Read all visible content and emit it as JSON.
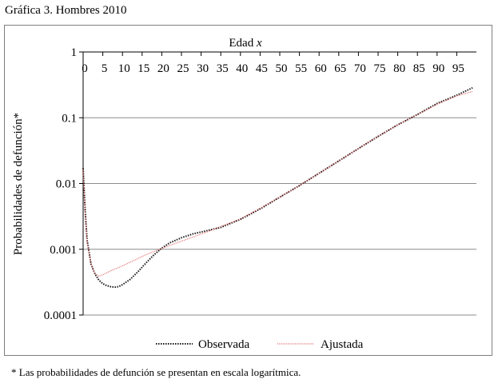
{
  "figure_title": "Gráfica 3. Hombres 2010",
  "footnote": "* Las probabilidades de defunción se presentan en escala logarítmica.",
  "chart_data": {
    "type": "line",
    "xlabel": "Edad",
    "xlabel_var": "x",
    "ylabel": "Probabilidades de defunción*",
    "x_axis_position": "top",
    "xlim": [
      0,
      100
    ],
    "x_ticks": [
      0,
      5,
      10,
      15,
      20,
      25,
      30,
      35,
      40,
      45,
      50,
      55,
      60,
      65,
      70,
      75,
      80,
      85,
      90,
      95
    ],
    "y_scale": "log",
    "ylim": [
      0.0001,
      1
    ],
    "y_ticks": [
      1,
      0.1,
      0.01,
      0.001,
      0.0001
    ],
    "y_tick_labels": [
      "1",
      "0.1",
      "0.01",
      "0.001",
      "0.0001"
    ],
    "grid": "horizontal",
    "legend_position": "bottom",
    "series": [
      {
        "name": "Observada",
        "color": "#1a1a1a",
        "style": "dotted",
        "points": [
          [
            0,
            0.017
          ],
          [
            0.5,
            0.004
          ],
          [
            1,
            0.0014
          ],
          [
            2,
            0.0006
          ],
          [
            3,
            0.00042
          ],
          [
            4,
            0.00034
          ],
          [
            5,
            0.0003
          ],
          [
            6,
            0.00028
          ],
          [
            7,
            0.00027
          ],
          [
            8,
            0.000265
          ],
          [
            9,
            0.00027
          ],
          [
            10,
            0.00029
          ],
          [
            12,
            0.00035
          ],
          [
            14,
            0.00046
          ],
          [
            16,
            0.00062
          ],
          [
            18,
            0.00082
          ],
          [
            20,
            0.00104
          ],
          [
            22,
            0.00125
          ],
          [
            25,
            0.0015
          ],
          [
            28,
            0.00172
          ],
          [
            30,
            0.00183
          ],
          [
            35,
            0.00215
          ],
          [
            40,
            0.00285
          ],
          [
            45,
            0.0041
          ],
          [
            50,
            0.0062
          ],
          [
            55,
            0.0093
          ],
          [
            60,
            0.0143
          ],
          [
            65,
            0.022
          ],
          [
            70,
            0.034
          ],
          [
            75,
            0.052
          ],
          [
            80,
            0.078
          ],
          [
            85,
            0.112
          ],
          [
            90,
            0.165
          ],
          [
            95,
            0.22
          ],
          [
            99,
            0.285
          ]
        ]
      },
      {
        "name": "Ajustada",
        "color": "#e06060",
        "style": "dotted",
        "points": [
          [
            0,
            0.0162
          ],
          [
            0.5,
            0.0035
          ],
          [
            1,
            0.0013
          ],
          [
            2,
            0.0006
          ],
          [
            3,
            0.00042
          ],
          [
            4,
            0.00039
          ],
          [
            5,
            0.00041
          ],
          [
            7,
            0.00047
          ],
          [
            10,
            0.00056
          ],
          [
            13,
            0.00068
          ],
          [
            16,
            0.00083
          ],
          [
            20,
            0.00103
          ],
          [
            25,
            0.00133
          ],
          [
            30,
            0.0017
          ],
          [
            35,
            0.00222
          ],
          [
            40,
            0.0029
          ],
          [
            45,
            0.0042
          ],
          [
            50,
            0.0062
          ],
          [
            55,
            0.0093
          ],
          [
            60,
            0.0143
          ],
          [
            65,
            0.022
          ],
          [
            70,
            0.034
          ],
          [
            75,
            0.052
          ],
          [
            80,
            0.078
          ],
          [
            85,
            0.112
          ],
          [
            90,
            0.16
          ],
          [
            95,
            0.215
          ],
          [
            99,
            0.25
          ]
        ]
      }
    ]
  }
}
